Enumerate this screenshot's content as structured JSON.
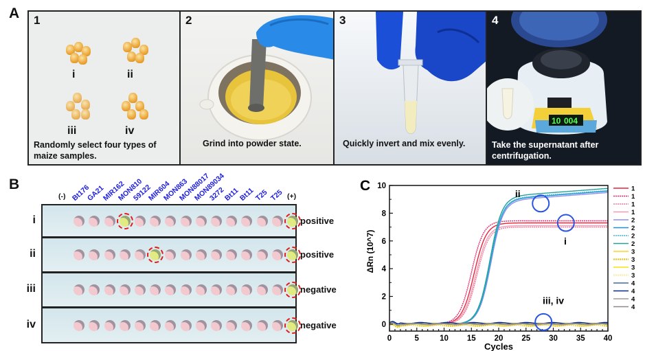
{
  "panelA": {
    "letter": "A",
    "steps": [
      {
        "num": "1",
        "caption_l1": "Randomly select four types of",
        "caption_l2": "maize samples.",
        "sample_labels": [
          "i",
          "ii",
          "iii",
          "iv"
        ]
      },
      {
        "num": "2",
        "caption_l1": "Grind into powder state.",
        "caption_l2": ""
      },
      {
        "num": "3",
        "caption_l1": "Quickly invert and mix evenly.",
        "caption_l2": ""
      },
      {
        "num": "4",
        "caption_l1": "Take the supernatant after",
        "caption_l2": "centrifugation.",
        "display_left": "10",
        "display_right": "004"
      }
    ]
  },
  "panelB": {
    "letter": "B",
    "columns": [
      "(-)",
      "Bt176",
      "GA21",
      "MIR162",
      "MON810",
      "59122",
      "MIR604",
      "MON863",
      "MON88017",
      "MON89034",
      "3272",
      "Bt11",
      "Bt11",
      "T25",
      "T25",
      "(+)"
    ],
    "rows": [
      {
        "label": "i",
        "result": "positive",
        "positive_columns": [
          4,
          15
        ]
      },
      {
        "label": "ii",
        "result": "positive",
        "positive_columns": [
          6,
          15
        ]
      },
      {
        "label": "iii",
        "result": "negative",
        "positive_columns": [
          15
        ]
      },
      {
        "label": "iv",
        "result": "negative",
        "positive_columns": [
          15
        ]
      }
    ],
    "colors": {
      "well": "#f2c9cf",
      "positive_well": "#e2ea82",
      "highlight": "#e01b1b",
      "label": "#1d1de0"
    }
  },
  "chart_data": {
    "type": "line",
    "panel_letter": "C",
    "title": "",
    "xlabel": "Cycles",
    "ylabel": "ΔRn  (10^7)",
    "xlim": [
      0,
      40
    ],
    "ylim": [
      -0.5,
      10
    ],
    "xticks": [
      0,
      5,
      10,
      15,
      20,
      25,
      30,
      35,
      40
    ],
    "yticks": [
      0,
      2,
      4,
      6,
      8,
      10
    ],
    "legend_position": "right",
    "series": [
      {
        "name": "1",
        "color": "#e8243a",
        "style": "solid",
        "plateau": 7.3,
        "ct": 15.5
      },
      {
        "name": "1",
        "color": "#e8246a",
        "style": "dotted",
        "plateau": 7.45,
        "ct": 15.0
      },
      {
        "name": "1",
        "color": "#f07a9a",
        "style": "dotted",
        "plateau": 7.0,
        "ct": 16.0
      },
      {
        "name": "1",
        "color": "#f39ab4",
        "style": "solid",
        "plateau": 7.1,
        "ct": 15.8
      },
      {
        "name": "2",
        "color": "#8e8ef0",
        "style": "solid",
        "plateau": 8.95,
        "ct": 18.6
      },
      {
        "name": "2",
        "color": "#1f8fd0",
        "style": "solid",
        "plateau": 9.05,
        "ct": 18.5
      },
      {
        "name": "2",
        "color": "#3ab8d8",
        "style": "dotted",
        "plateau": 9.1,
        "ct": 18.5
      },
      {
        "name": "2",
        "color": "#22a09a",
        "style": "solid",
        "plateau": 9.25,
        "ct": 18.4
      },
      {
        "name": "3",
        "color": "#f4e06a",
        "style": "solid",
        "plateau": -0.05,
        "ct": null
      },
      {
        "name": "3",
        "color": "#e6c820",
        "style": "dotted",
        "plateau": -0.1,
        "ct": null
      },
      {
        "name": "3",
        "color": "#f8e85a",
        "style": "solid",
        "plateau": 0.02,
        "ct": null
      },
      {
        "name": "3",
        "color": "#f6eeaa",
        "style": "dotted",
        "plateau": 0.0,
        "ct": null
      },
      {
        "name": "4",
        "color": "#3a6aa8",
        "style": "solid",
        "plateau": 0.05,
        "ct": null
      },
      {
        "name": "4",
        "color": "#0c2a8a",
        "style": "solid",
        "plateau": 0.08,
        "ct": null
      },
      {
        "name": "4",
        "color": "#a89890",
        "style": "solid",
        "plateau": 0.0,
        "ct": null
      },
      {
        "name": "4",
        "color": "#8a8a8a",
        "style": "solid",
        "plateau": 0.02,
        "ct": null
      }
    ],
    "annotations": [
      {
        "text": "ii",
        "x": 23.5,
        "y": 9.4,
        "circle_x": 27.7,
        "circle_y": 8.7
      },
      {
        "text": "i",
        "x": 32.2,
        "y": 6.0,
        "circle_x": 32.3,
        "circle_y": 7.3
      },
      {
        "text": "iii, iv",
        "x": 30.0,
        "y": 1.7,
        "circle_x": 28.2,
        "circle_y": 0.15
      }
    ],
    "annotation_color": "#2b55e0"
  }
}
